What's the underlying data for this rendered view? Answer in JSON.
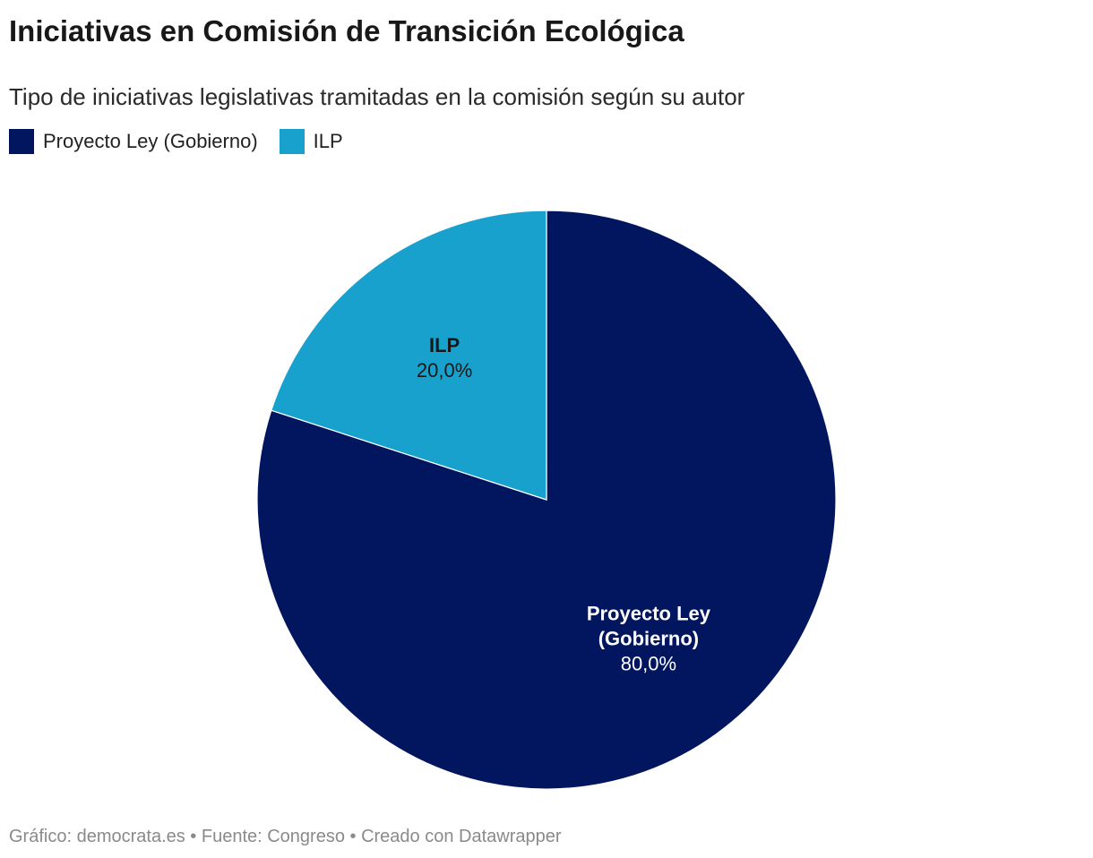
{
  "header": {
    "title": "Iniciativas en Comisión de Transición Ecológica",
    "subtitle": "Tipo de iniciativas legislativas tramitadas en la comisión según su autor"
  },
  "legend": {
    "items": [
      {
        "label": "Proyecto Ley (Gobierno)",
        "color": "#02155f"
      },
      {
        "label": "ILP",
        "color": "#18a1cd"
      }
    ]
  },
  "chart_data": {
    "type": "pie",
    "categories": [
      "Proyecto Ley (Gobierno)",
      "ILP"
    ],
    "values": [
      80.0,
      20.0
    ],
    "value_labels": [
      "80,0%",
      "20,0%"
    ],
    "slice_labels": [
      [
        "Proyecto Ley",
        "(Gobierno)"
      ],
      [
        "ILP"
      ]
    ],
    "colors": [
      "#02155f",
      "#18a1cd"
    ],
    "label_colors": [
      "#ffffff",
      "#181818"
    ],
    "unit": "%",
    "legend_position": "top-left",
    "start_angle": "12 o'clock",
    "direction": "clockwise"
  },
  "footer": {
    "text": "Gráfico: democrata.es • Fuente: Congreso • Creado con Datawrapper"
  }
}
